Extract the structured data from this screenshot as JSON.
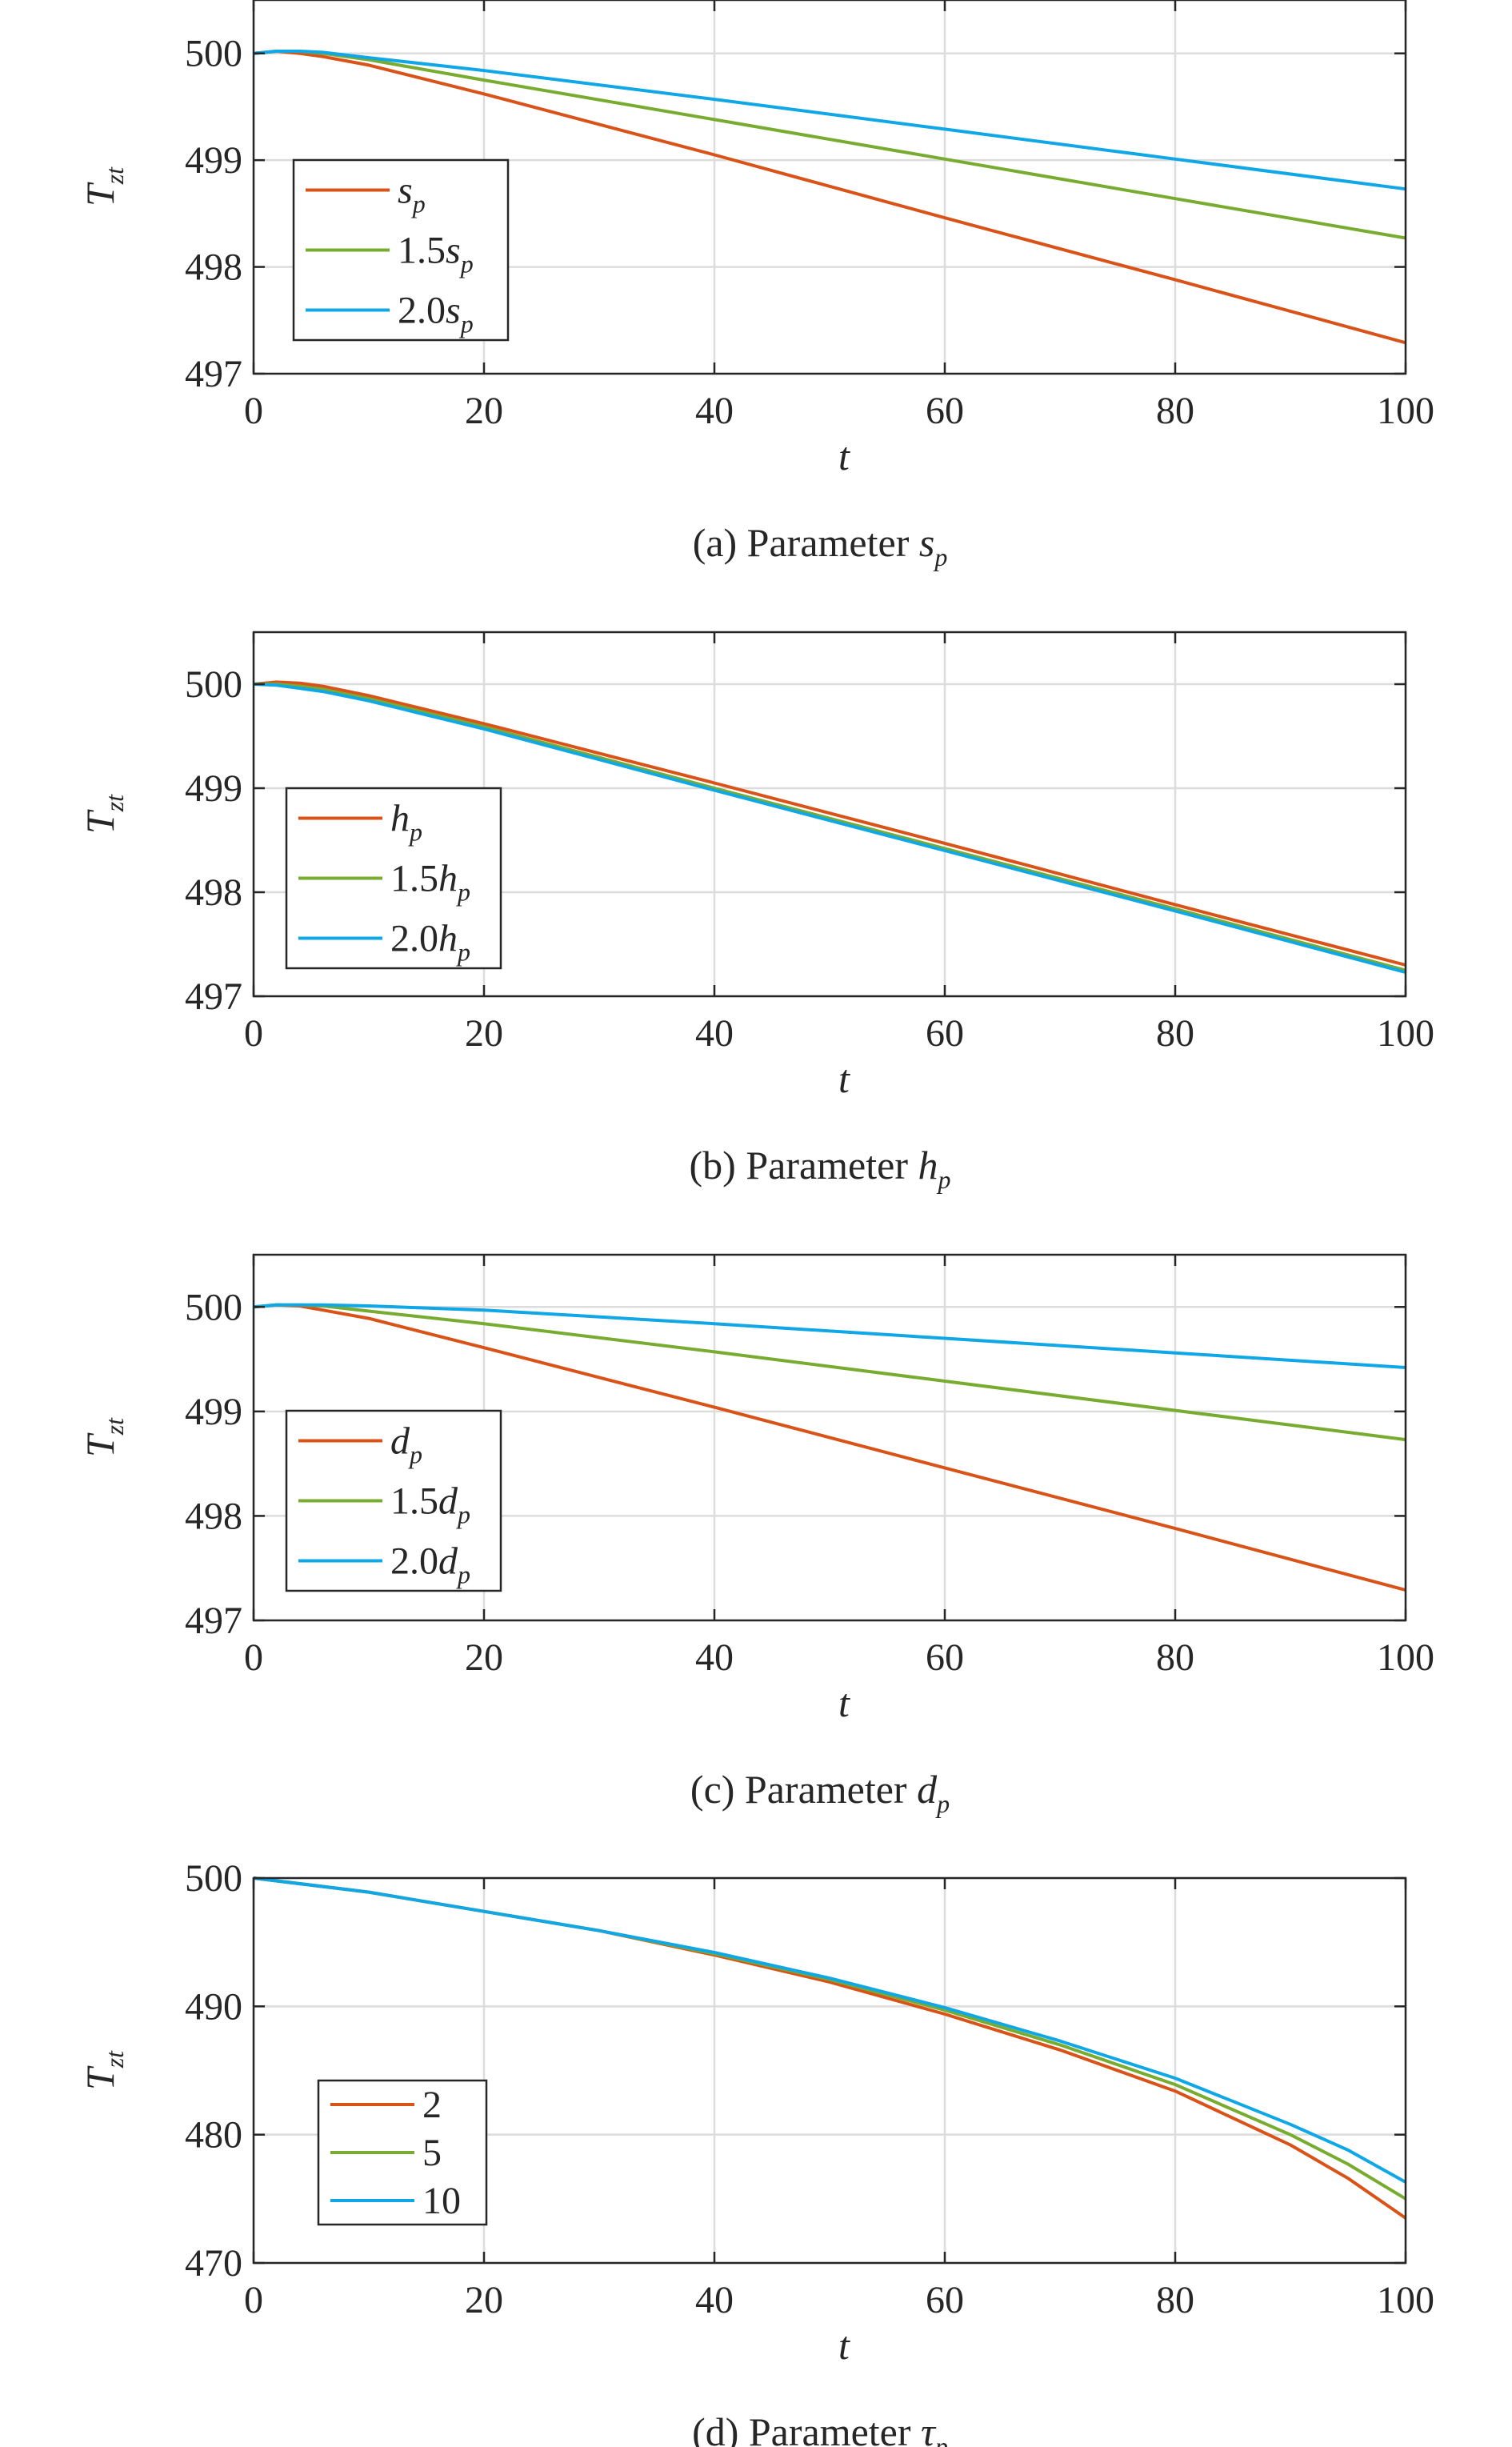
{
  "chart_data": [
    {
      "type": "line",
      "caption": {
        "prefix": "(a) Parameter ",
        "sym": "s",
        "sub": "p"
      },
      "xlabel": "t",
      "ylabel": {
        "main": "T",
        "sub": "zt"
      },
      "xlim": [
        0,
        100
      ],
      "ylim": [
        497,
        500.5
      ],
      "xticks": [
        0,
        20,
        40,
        60,
        80,
        100
      ],
      "yticks": [
        497,
        498,
        499,
        500
      ],
      "grid": true,
      "legend": {
        "placement": "left-middle",
        "entries": [
          {
            "pre": "",
            "sym": "s",
            "sub": "p"
          },
          {
            "pre": "1.5",
            "sym": "s",
            "sub": "p"
          },
          {
            "pre": "2.0",
            "sym": "s",
            "sub": "p"
          }
        ]
      },
      "series": [
        {
          "name": "s_p",
          "color": "#D95319",
          "x": [
            0,
            2,
            4,
            6,
            10,
            20,
            40,
            60,
            80,
            100
          ],
          "y": [
            500.0,
            500.02,
            500.0,
            499.97,
            499.89,
            499.62,
            499.05,
            498.46,
            497.88,
            497.29
          ]
        },
        {
          "name": "1.5s_p",
          "color": "#77AC30",
          "x": [
            0,
            2,
            4,
            6,
            10,
            20,
            40,
            60,
            80,
            100
          ],
          "y": [
            500.0,
            500.02,
            500.02,
            500.0,
            499.94,
            499.75,
            499.38,
            499.01,
            498.64,
            498.27
          ]
        },
        {
          "name": "2.0s_p",
          "color": "#0FA7E6",
          "x": [
            0,
            2,
            4,
            6,
            10,
            20,
            40,
            60,
            80,
            100
          ],
          "y": [
            500.0,
            500.02,
            500.02,
            500.01,
            499.96,
            499.84,
            499.57,
            499.29,
            499.01,
            498.73
          ]
        }
      ]
    },
    {
      "type": "line",
      "caption": {
        "prefix": "(b) Parameter ",
        "sym": "h",
        "sub": "p"
      },
      "xlabel": "t",
      "ylabel": {
        "main": "T",
        "sub": "zt"
      },
      "xlim": [
        0,
        100
      ],
      "ylim": [
        497,
        500.5
      ],
      "xticks": [
        0,
        20,
        40,
        60,
        80,
        100
      ],
      "yticks": [
        497,
        498,
        499,
        500
      ],
      "grid": true,
      "legend": {
        "placement": "left-bottom",
        "entries": [
          {
            "pre": "",
            "sym": "h",
            "sub": "p"
          },
          {
            "pre": "1.5",
            "sym": "h",
            "sub": "p"
          },
          {
            "pre": "2.0",
            "sym": "h",
            "sub": "p"
          }
        ]
      },
      "series": [
        {
          "name": "h_p",
          "color": "#D95319",
          "x": [
            0,
            2,
            4,
            6,
            10,
            20,
            40,
            60,
            80,
            100
          ],
          "y": [
            500.0,
            500.02,
            500.01,
            499.98,
            499.89,
            499.62,
            499.05,
            498.47,
            497.88,
            497.3
          ]
        },
        {
          "name": "1.5h_p",
          "color": "#77AC30",
          "x": [
            0,
            2,
            4,
            6,
            10,
            20,
            40,
            60,
            80,
            100
          ],
          "y": [
            500.0,
            500.0,
            499.98,
            499.95,
            499.86,
            499.59,
            499.0,
            498.42,
            497.84,
            497.25
          ]
        },
        {
          "name": "2.0h_p",
          "color": "#0FA7E6",
          "x": [
            0,
            2,
            4,
            6,
            10,
            20,
            40,
            60,
            80,
            100
          ],
          "y": [
            500.0,
            499.99,
            499.96,
            499.93,
            499.84,
            499.57,
            498.98,
            498.4,
            497.82,
            497.23
          ]
        }
      ]
    },
    {
      "type": "line",
      "caption": {
        "prefix": "(c) Parameter ",
        "sym": "d",
        "sub": "p"
      },
      "xlabel": "t",
      "ylabel": {
        "main": "T",
        "sub": "zt"
      },
      "xlim": [
        0,
        100
      ],
      "ylim": [
        497,
        500.5
      ],
      "xticks": [
        0,
        20,
        40,
        60,
        80,
        100
      ],
      "yticks": [
        497,
        498,
        499,
        500
      ],
      "grid": true,
      "legend": {
        "placement": "left-bottom",
        "entries": [
          {
            "pre": "",
            "sym": "d",
            "sub": "p"
          },
          {
            "pre": "1.5",
            "sym": "d",
            "sub": "p"
          },
          {
            "pre": "2.0",
            "sym": "d",
            "sub": "p"
          }
        ]
      },
      "series": [
        {
          "name": "d_p",
          "color": "#D95319",
          "x": [
            0,
            2,
            4,
            6,
            10,
            20,
            40,
            60,
            80,
            100
          ],
          "y": [
            500.0,
            500.02,
            500.01,
            499.97,
            499.89,
            499.61,
            499.04,
            498.46,
            497.88,
            497.29
          ]
        },
        {
          "name": "1.5d_p",
          "color": "#77AC30",
          "x": [
            0,
            2,
            4,
            6,
            10,
            20,
            40,
            60,
            80,
            100
          ],
          "y": [
            500.0,
            500.02,
            500.02,
            500.01,
            499.96,
            499.84,
            499.57,
            499.29,
            499.01,
            498.73
          ]
        },
        {
          "name": "2.0d_p",
          "color": "#0FA7E6",
          "x": [
            0,
            2,
            4,
            6,
            10,
            20,
            40,
            60,
            80,
            100
          ],
          "y": [
            500.0,
            500.02,
            500.02,
            500.02,
            500.01,
            499.97,
            499.84,
            499.7,
            499.56,
            499.42
          ]
        }
      ]
    },
    {
      "type": "line",
      "caption": {
        "prefix": "(d) Parameter ",
        "sym": "τ",
        "sub": "p"
      },
      "xlabel": "t",
      "ylabel": {
        "main": "T",
        "sub": "zt"
      },
      "xlim": [
        0,
        100
      ],
      "ylim": [
        470,
        500
      ],
      "xticks": [
        0,
        20,
        40,
        60,
        80,
        100
      ],
      "yticks": [
        470,
        480,
        490,
        500
      ],
      "grid": true,
      "legend": {
        "placement": "left-bottom",
        "entries": [
          {
            "pre": "2",
            "sym": "",
            "sub": ""
          },
          {
            "pre": "5",
            "sym": "",
            "sub": ""
          },
          {
            "pre": "10",
            "sym": "",
            "sub": ""
          }
        ]
      },
      "series": [
        {
          "name": "2",
          "color": "#D95319",
          "x": [
            0,
            10,
            20,
            30,
            40,
            50,
            60,
            70,
            80,
            90,
            95,
            100
          ],
          "y": [
            500.0,
            498.9,
            497.4,
            495.9,
            494.0,
            491.9,
            489.4,
            486.6,
            483.4,
            479.2,
            476.6,
            473.5
          ]
        },
        {
          "name": "5",
          "color": "#77AC30",
          "x": [
            0,
            10,
            20,
            30,
            40,
            50,
            60,
            70,
            80,
            90,
            95,
            100
          ],
          "y": [
            500.0,
            498.9,
            497.4,
            495.9,
            494.1,
            492.1,
            489.7,
            487.0,
            483.9,
            480.0,
            477.7,
            475.0
          ]
        },
        {
          "name": "10",
          "color": "#0FA7E6",
          "x": [
            0,
            10,
            20,
            30,
            40,
            50,
            60,
            70,
            80,
            90,
            95,
            100
          ],
          "y": [
            500.0,
            498.9,
            497.4,
            495.9,
            494.2,
            492.2,
            489.9,
            487.3,
            484.4,
            480.8,
            478.8,
            476.3
          ]
        }
      ]
    }
  ]
}
